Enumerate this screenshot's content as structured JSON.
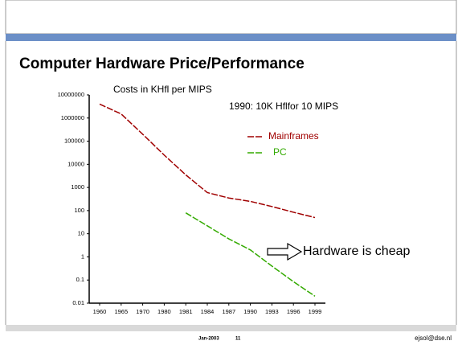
{
  "chart_data": {
    "type": "line",
    "title": "Computer Hardware Price/Performance",
    "annotations": [
      "Costs in KHfl per MIPS",
      "1990: 10K Hflfor 10 MIPS",
      "Hardware is cheap"
    ],
    "categories": [
      "1960",
      "1965",
      "1970",
      "1980",
      "1981",
      "1984",
      "1987",
      "1990",
      "1993",
      "1996",
      "1999"
    ],
    "series": [
      {
        "name": "Mainframes",
        "color": "#a00000",
        "values": [
          4000000,
          1500000,
          200000,
          25000,
          3500,
          600,
          350,
          250,
          150,
          85,
          50
        ]
      },
      {
        "name": "PC",
        "color": "#33aa00",
        "values": [
          null,
          null,
          null,
          null,
          80,
          22,
          6,
          2,
          0.4,
          0.085,
          0.02
        ]
      }
    ],
    "log_scale": true,
    "ylim": [
      0.01,
      10000000
    ],
    "yticks": [
      0.01,
      0.1,
      1,
      10,
      100,
      1000,
      10000,
      100000,
      1000000,
      10000000
    ],
    "footer": {
      "date": "Jan-2003",
      "page": "11",
      "email": "ejsol@dse.nl"
    }
  }
}
